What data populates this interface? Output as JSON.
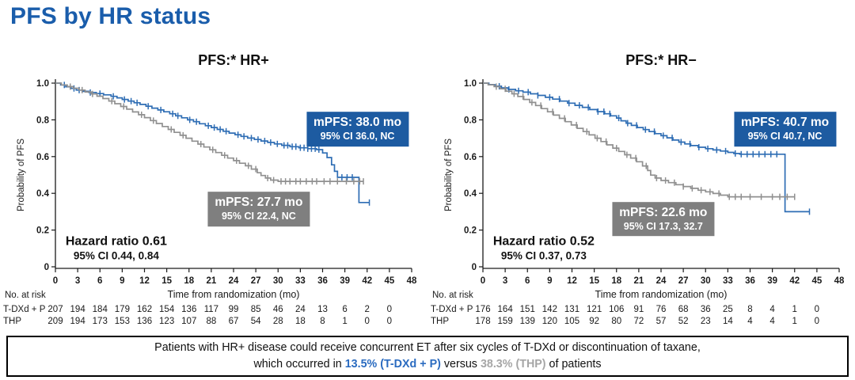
{
  "title": "PFS by HR status",
  "colors": {
    "title_blue": "#1a5dab",
    "tdxd_blue": "#2e6db4",
    "thp_gray": "#909090",
    "box_blue": "#1d5ba1",
    "box_gray": "#7f7f7f",
    "at_risk_gray": "#a0a0a0",
    "footnote_blue": "#2a6bc0",
    "footnote_gray": "#a6a6a6"
  },
  "chart_data": [
    {
      "type": "line",
      "subtype": "kaplan-meier-step",
      "title": "PFS:* HR+",
      "ylabel": "Probability of PFS",
      "xlabel": "Time from randomization (mo)",
      "xlim": [
        0,
        48
      ],
      "ylim": [
        0,
        1.0
      ],
      "x_ticks": [
        0,
        3,
        6,
        9,
        12,
        15,
        18,
        21,
        24,
        27,
        30,
        33,
        36,
        39,
        42,
        45,
        48
      ],
      "y_ticks": [
        "1.0",
        "0.8",
        "0.6",
        "0.4",
        "0.2",
        "0"
      ],
      "grid": false,
      "series": [
        {
          "name": "T-DXd + P",
          "color": "#2e6db4",
          "points": [
            [
              0,
              1.0
            ],
            [
              0.7,
              0.99
            ],
            [
              1.4,
              0.98
            ],
            [
              2.1,
              0.971
            ],
            [
              2.8,
              0.962
            ],
            [
              3.6,
              0.955
            ],
            [
              4.5,
              0.949
            ],
            [
              5.5,
              0.943
            ],
            [
              6.5,
              0.936
            ],
            [
              7.5,
              0.928
            ],
            [
              8.3,
              0.92
            ],
            [
              9,
              0.911
            ],
            [
              9.8,
              0.902
            ],
            [
              10.6,
              0.893
            ],
            [
              11.4,
              0.884
            ],
            [
              12.2,
              0.874
            ],
            [
              13,
              0.864
            ],
            [
              13.8,
              0.854
            ],
            [
              14.6,
              0.844
            ],
            [
              15.4,
              0.833
            ],
            [
              16.2,
              0.822
            ],
            [
              17,
              0.811
            ],
            [
              17.8,
              0.8
            ],
            [
              18.6,
              0.79
            ],
            [
              19.4,
              0.779
            ],
            [
              20.2,
              0.768
            ],
            [
              21,
              0.758
            ],
            [
              21.8,
              0.748
            ],
            [
              22.6,
              0.738
            ],
            [
              23.4,
              0.728
            ],
            [
              24.2,
              0.719
            ],
            [
              25,
              0.71
            ],
            [
              25.9,
              0.701
            ],
            [
              26.8,
              0.693
            ],
            [
              27.7,
              0.685
            ],
            [
              28.6,
              0.677
            ],
            [
              29.5,
              0.669
            ],
            [
              30.5,
              0.661
            ],
            [
              31.6,
              0.654
            ],
            [
              32.8,
              0.648
            ],
            [
              34,
              0.643
            ],
            [
              35.2,
              0.638
            ],
            [
              36,
              0.62
            ],
            [
              36.6,
              0.595
            ],
            [
              37.2,
              0.555
            ],
            [
              37.6,
              0.52
            ],
            [
              38,
              0.487
            ],
            [
              40.9,
              0.35
            ],
            [
              42.3,
              0.35
            ]
          ],
          "censor_times": [
            1.2,
            2.5,
            3.2,
            4.7,
            6,
            7.8,
            9.3,
            10.2,
            11,
            12.5,
            14.2,
            15.8,
            16.5,
            18.1,
            19,
            20.6,
            21.4,
            22.2,
            23,
            24.6,
            25.4,
            26.4,
            27.3,
            28.2,
            29,
            29.9,
            30.8,
            31.3,
            31.9,
            32.4,
            33,
            33.5,
            34,
            34.5,
            35,
            35.5,
            38.6,
            39.3,
            40,
            42.3
          ]
        },
        {
          "name": "THP",
          "color": "#909090",
          "points": [
            [
              0,
              1.0
            ],
            [
              0.8,
              0.99
            ],
            [
              1.6,
              0.981
            ],
            [
              2.4,
              0.972
            ],
            [
              3.2,
              0.962
            ],
            [
              4,
              0.952
            ],
            [
              4.8,
              0.941
            ],
            [
              5.6,
              0.929
            ],
            [
              6.4,
              0.916
            ],
            [
              7.2,
              0.902
            ],
            [
              8,
              0.888
            ],
            [
              8.8,
              0.873
            ],
            [
              9.6,
              0.858
            ],
            [
              10.4,
              0.843
            ],
            [
              11.2,
              0.828
            ],
            [
              12,
              0.812
            ],
            [
              12.8,
              0.796
            ],
            [
              13.6,
              0.78
            ],
            [
              14.4,
              0.764
            ],
            [
              15.2,
              0.748
            ],
            [
              16,
              0.732
            ],
            [
              16.8,
              0.716
            ],
            [
              17.6,
              0.7
            ],
            [
              18.4,
              0.684
            ],
            [
              19.2,
              0.668
            ],
            [
              20,
              0.652
            ],
            [
              20.8,
              0.637
            ],
            [
              21.6,
              0.622
            ],
            [
              22.4,
              0.607
            ],
            [
              23.2,
              0.592
            ],
            [
              24,
              0.578
            ],
            [
              24.8,
              0.564
            ],
            [
              25.6,
              0.55
            ],
            [
              26.4,
              0.532
            ],
            [
              27.2,
              0.512
            ],
            [
              27.7,
              0.497
            ],
            [
              28.3,
              0.483
            ],
            [
              29,
              0.472
            ],
            [
              30,
              0.465
            ],
            [
              41.5,
              0.465
            ]
          ],
          "censor_times": [
            2,
            3.6,
            5,
            7.6,
            9.2,
            11.6,
            13.2,
            15.6,
            17.2,
            19.6,
            21.2,
            22.8,
            24.4,
            26,
            27,
            28.6,
            29.4,
            30.4,
            31,
            31.6,
            32.4,
            33,
            33.8,
            34.6,
            35.2,
            36.2,
            37,
            38,
            39.2,
            40.2,
            41,
            41.5
          ]
        }
      ],
      "annotations": {
        "mpfs_blue": {
          "line1": "mPFS: 38.0 mo",
          "line2": "95% CI 36.0, NC",
          "anchor": {
            "t": 40.7,
            "p": 0.75
          }
        },
        "mpfs_gray": {
          "line1": "mPFS: 27.7 mo",
          "line2": "95% CI 22.4, NC",
          "anchor": {
            "t": 27.4,
            "p": 0.315
          }
        },
        "hazard": {
          "line1": "Hazard ratio 0.61",
          "line2": "95% CI 0.44, 0.84",
          "anchor": {
            "t": 8.2,
            "p": 0.1
          }
        }
      },
      "at_risk": {
        "label": "No. at risk",
        "rows": [
          {
            "label": "T-DXd + P",
            "color": "#2e6db4",
            "values": [
              207,
              194,
              184,
              179,
              162,
              154,
              136,
              117,
              99,
              85,
              46,
              24,
              13,
              6,
              2,
              0
            ]
          },
          {
            "label": "THP",
            "color": "#a0a0a0",
            "values": [
              209,
              194,
              173,
              153,
              136,
              123,
              107,
              88,
              67,
              54,
              28,
              18,
              8,
              1,
              0,
              0
            ]
          }
        ]
      }
    },
    {
      "type": "line",
      "subtype": "kaplan-meier-step",
      "title": "PFS:* HR−",
      "ylabel": "Probability of PFS",
      "xlabel": "Time from randomization (mo)",
      "xlim": [
        0,
        48
      ],
      "ylim": [
        0,
        1.0
      ],
      "x_ticks": [
        0,
        3,
        6,
        9,
        12,
        15,
        18,
        21,
        24,
        27,
        30,
        33,
        36,
        39,
        42,
        45,
        48
      ],
      "y_ticks": [
        "1.0",
        "0.8",
        "0.6",
        "0.4",
        "0.2",
        "0"
      ],
      "grid": false,
      "series": [
        {
          "name": "T-DXd + P",
          "color": "#2e6db4",
          "points": [
            [
              0,
              1.0
            ],
            [
              0.8,
              0.992
            ],
            [
              1.6,
              0.983
            ],
            [
              2.5,
              0.974
            ],
            [
              3.4,
              0.966
            ],
            [
              4.4,
              0.958
            ],
            [
              5.4,
              0.951
            ],
            [
              6.4,
              0.942
            ],
            [
              7.4,
              0.933
            ],
            [
              8.4,
              0.923
            ],
            [
              9.4,
              0.913
            ],
            [
              10.4,
              0.902
            ],
            [
              11.4,
              0.891
            ],
            [
              12.4,
              0.879
            ],
            [
              13.4,
              0.868
            ],
            [
              14.4,
              0.856
            ],
            [
              15.4,
              0.845
            ],
            [
              16.4,
              0.833
            ],
            [
              17.2,
              0.822
            ],
            [
              18,
              0.81
            ],
            [
              18.6,
              0.795
            ],
            [
              19.3,
              0.782
            ],
            [
              20,
              0.77
            ],
            [
              20.8,
              0.758
            ],
            [
              21.6,
              0.747
            ],
            [
              22.4,
              0.736
            ],
            [
              23.2,
              0.725
            ],
            [
              24,
              0.714
            ],
            [
              24.8,
              0.702
            ],
            [
              25.6,
              0.69
            ],
            [
              26.4,
              0.679
            ],
            [
              27.2,
              0.669
            ],
            [
              28,
              0.66
            ],
            [
              29,
              0.651
            ],
            [
              30,
              0.643
            ],
            [
              31,
              0.636
            ],
            [
              32,
              0.63
            ],
            [
              33,
              0.623
            ],
            [
              33.8,
              0.617
            ],
            [
              34.6,
              0.613
            ],
            [
              40.7,
              0.3
            ],
            [
              44,
              0.3
            ]
          ],
          "censor_times": [
            2.2,
            3.5,
            4.8,
            6.1,
            7.4,
            9,
            10.3,
            11.6,
            13,
            14.2,
            15.5,
            16.3,
            17.1,
            18.3,
            19.5,
            20.7,
            21.9,
            23.1,
            24.3,
            25.5,
            26.7,
            27.9,
            29.1,
            30.3,
            31.5,
            32.7,
            34,
            34.8,
            35.6,
            36.4,
            37.2,
            38,
            38.8,
            39.6,
            44
          ]
        },
        {
          "name": "THP",
          "color": "#909090",
          "points": [
            [
              0,
              1.0
            ],
            [
              0.7,
              0.991
            ],
            [
              1.5,
              0.981
            ],
            [
              2.3,
              0.969
            ],
            [
              3.1,
              0.956
            ],
            [
              3.9,
              0.942
            ],
            [
              4.7,
              0.927
            ],
            [
              5.5,
              0.911
            ],
            [
              6.3,
              0.895
            ],
            [
              7.1,
              0.878
            ],
            [
              7.9,
              0.861
            ],
            [
              8.7,
              0.844
            ],
            [
              9.5,
              0.826
            ],
            [
              10.3,
              0.808
            ],
            [
              11.1,
              0.79
            ],
            [
              11.9,
              0.772
            ],
            [
              12.7,
              0.754
            ],
            [
              13.5,
              0.736
            ],
            [
              14.3,
              0.718
            ],
            [
              15.1,
              0.7
            ],
            [
              15.9,
              0.682
            ],
            [
              16.7,
              0.664
            ],
            [
              17.5,
              0.646
            ],
            [
              18.3,
              0.628
            ],
            [
              19.1,
              0.61
            ],
            [
              19.9,
              0.592
            ],
            [
              20.7,
              0.572
            ],
            [
              21.5,
              0.549
            ],
            [
              22.2,
              0.524
            ],
            [
              22.6,
              0.499
            ],
            [
              23.2,
              0.483
            ],
            [
              24,
              0.47
            ],
            [
              25,
              0.458
            ],
            [
              26,
              0.447
            ],
            [
              27,
              0.437
            ],
            [
              28,
              0.427
            ],
            [
              29,
              0.417
            ],
            [
              30,
              0.408
            ],
            [
              31,
              0.399
            ],
            [
              32,
              0.39
            ],
            [
              33,
              0.381
            ],
            [
              42,
              0.381
            ]
          ],
          "censor_times": [
            1.8,
            3,
            4.2,
            5.4,
            6.6,
            7.8,
            9.4,
            11,
            12.6,
            14,
            15.4,
            16.6,
            18,
            19.4,
            20.6,
            22,
            23.4,
            24.6,
            25.8,
            27,
            28.2,
            29.4,
            30.6,
            31.8,
            33.2,
            34,
            34.8,
            36,
            37.5,
            39,
            40,
            41,
            42
          ]
        }
      ],
      "annotations": {
        "mpfs_blue": {
          "line1": "mPFS: 40.7 mo",
          "line2": "95% CI 40.7, NC",
          "anchor": {
            "t": 40.7,
            "p": 0.75
          }
        },
        "mpfs_gray": {
          "line1": "mPFS: 22.6 mo",
          "line2": "95% CI 17.3, 32.7",
          "anchor": {
            "t": 24.3,
            "p": 0.26
          }
        },
        "hazard": {
          "line1": "Hazard ratio 0.52",
          "line2": "95% CI 0.37, 0.73",
          "anchor": {
            "t": 8.2,
            "p": 0.1
          }
        }
      },
      "at_risk": {
        "label": "No. at risk",
        "rows": [
          {
            "label": "T-DXd + P",
            "color": "#2e6db4",
            "values": [
              176,
              164,
              151,
              142,
              131,
              121,
              106,
              91,
              76,
              68,
              36,
              25,
              8,
              4,
              1,
              0
            ]
          },
          {
            "label": "THP",
            "color": "#a0a0a0",
            "values": [
              178,
              159,
              139,
              120,
              105,
              92,
              80,
              72,
              57,
              52,
              23,
              14,
              4,
              4,
              1,
              0
            ]
          }
        ]
      }
    }
  ],
  "footnote": {
    "line1": "Patients with HR+ disease could receive concurrent ET after six cycles of T-DXd or discontinuation of taxane,",
    "line2_prefix": "which occurred in ",
    "line2_blue": "13.5% (T-DXd + P)",
    "line2_mid": " versus ",
    "line2_gray": "38.3% (THP)",
    "line2_suffix": " of patients"
  }
}
